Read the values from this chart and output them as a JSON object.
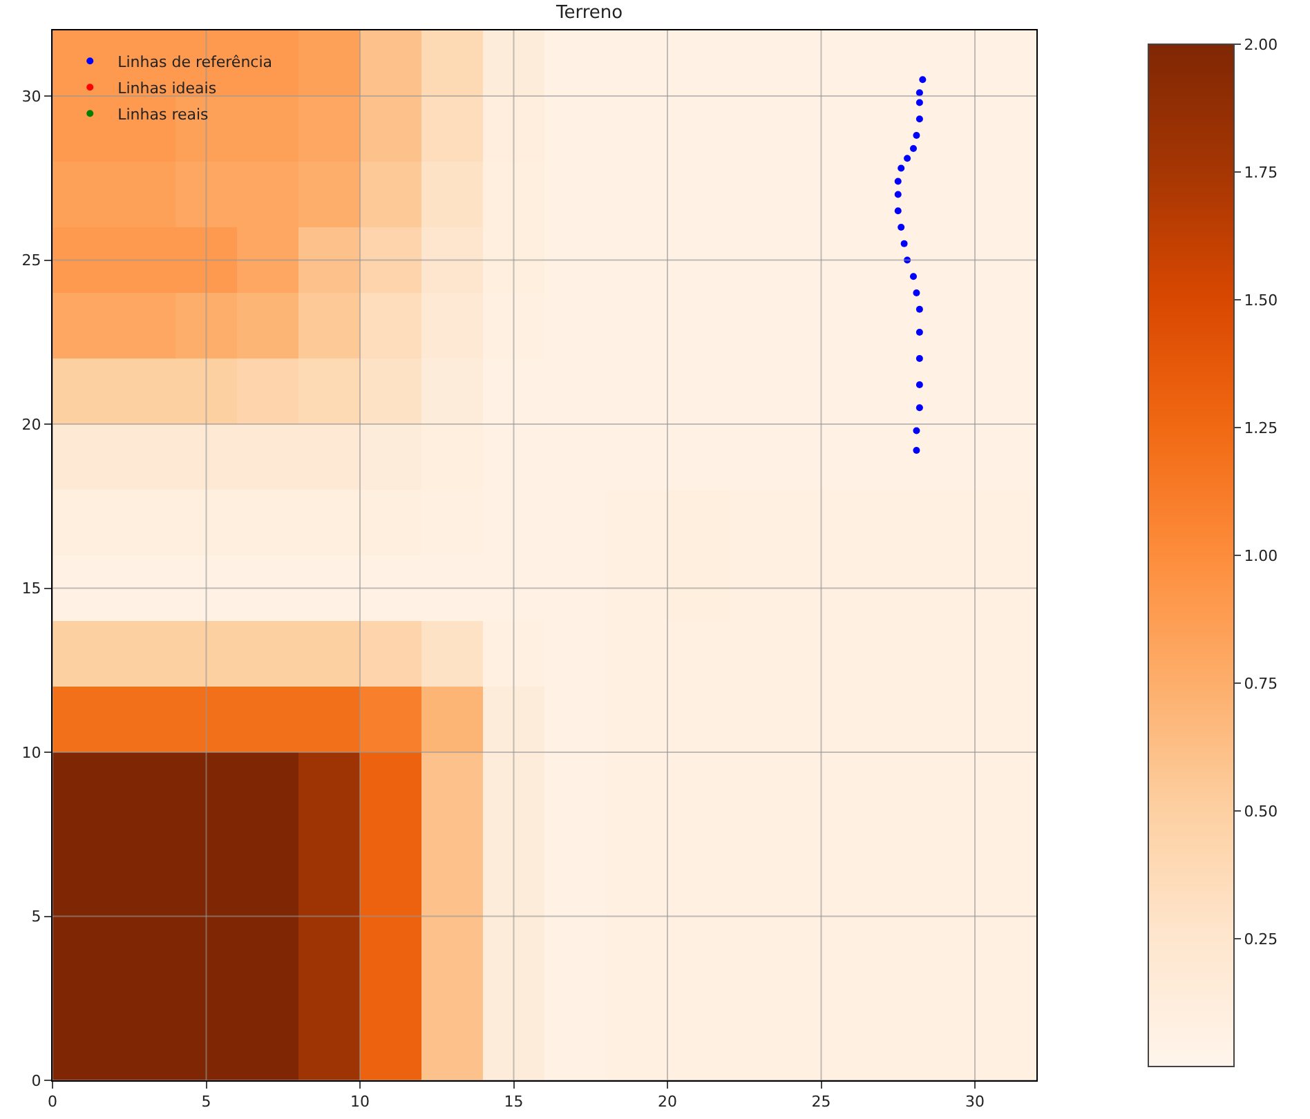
{
  "chart_data": {
    "type": "heatmap",
    "title": "Terreno",
    "xlim": [
      0,
      32
    ],
    "xticks": [
      0,
      5,
      10,
      15,
      20,
      25,
      30
    ],
    "ylim": [
      0,
      32
    ],
    "yticks": [
      0,
      5,
      10,
      15,
      20,
      25,
      30
    ],
    "clim": [
      0,
      2
    ],
    "cticks": [
      {
        "value": 0.25,
        "label": "0.25"
      },
      {
        "value": 0.5,
        "label": "0.50"
      },
      {
        "value": 0.75,
        "label": "0.75"
      },
      {
        "value": 1,
        "label": "1.00"
      },
      {
        "value": 1.25,
        "label": "1.25"
      },
      {
        "value": 1.5,
        "label": "1.50"
      },
      {
        "value": 1.75,
        "label": "1.75"
      },
      {
        "value": 2,
        "label": "2.00"
      }
    ],
    "cells": [
      [
        0.9,
        0.9,
        0.9,
        0.9,
        0.85,
        0.6,
        0.4,
        0.15,
        0.05,
        0.05,
        0.05,
        0.05,
        0.05,
        0.05,
        0.05,
        0.05
      ],
      [
        0.9,
        0.9,
        0.85,
        0.85,
        0.8,
        0.6,
        0.35,
        0.12,
        0.05,
        0.05,
        0.05,
        0.05,
        0.05,
        0.05,
        0.05,
        0.05
      ],
      [
        0.85,
        0.85,
        0.8,
        0.8,
        0.75,
        0.55,
        0.3,
        0.1,
        0.05,
        0.05,
        0.05,
        0.05,
        0.05,
        0.05,
        0.05,
        0.05
      ],
      [
        0.9,
        0.9,
        0.9,
        0.8,
        0.6,
        0.45,
        0.25,
        0.1,
        0.05,
        0.05,
        0.05,
        0.05,
        0.05,
        0.05,
        0.05,
        0.05
      ],
      [
        0.8,
        0.8,
        0.75,
        0.7,
        0.55,
        0.35,
        0.2,
        0.08,
        0.05,
        0.05,
        0.05,
        0.05,
        0.05,
        0.05,
        0.05,
        0.05
      ],
      [
        0.5,
        0.5,
        0.5,
        0.45,
        0.4,
        0.3,
        0.15,
        0.06,
        0.05,
        0.05,
        0.05,
        0.05,
        0.05,
        0.05,
        0.05,
        0.05
      ],
      [
        0.2,
        0.2,
        0.2,
        0.2,
        0.2,
        0.15,
        0.1,
        0.05,
        0.05,
        0.05,
        0.05,
        0.05,
        0.05,
        0.05,
        0.05,
        0.05
      ],
      [
        0.1,
        0.1,
        0.1,
        0.1,
        0.1,
        0.1,
        0.08,
        0.05,
        0.05,
        0.08,
        0.1,
        0.08,
        0.08,
        0.08,
        0.08,
        0.08
      ],
      [
        0.05,
        0.05,
        0.05,
        0.05,
        0.05,
        0.05,
        0.05,
        0.05,
        0.05,
        0.08,
        0.1,
        0.08,
        0.08,
        0.08,
        0.08,
        0.08
      ],
      [
        0.5,
        0.5,
        0.5,
        0.5,
        0.5,
        0.45,
        0.3,
        0.08,
        0.05,
        0.08,
        0.08,
        0.08,
        0.08,
        0.08,
        0.08,
        0.08
      ],
      [
        1.2,
        1.2,
        1.2,
        1.2,
        1.2,
        1.1,
        0.7,
        0.15,
        0.05,
        0.08,
        0.08,
        0.08,
        0.08,
        0.08,
        0.08,
        0.08
      ],
      [
        2,
        2,
        2,
        2,
        1.8,
        1.3,
        0.6,
        0.15,
        0.05,
        0.08,
        0.08,
        0.08,
        0.08,
        0.08,
        0.08,
        0.08
      ],
      [
        2,
        2,
        2,
        2,
        1.8,
        1.3,
        0.6,
        0.15,
        0.05,
        0.08,
        0.08,
        0.08,
        0.08,
        0.08,
        0.08,
        0.08
      ],
      [
        2,
        2,
        2,
        2,
        1.8,
        1.3,
        0.6,
        0.15,
        0.05,
        0.08,
        0.08,
        0.08,
        0.08,
        0.08,
        0.08,
        0.08
      ],
      [
        2,
        2,
        2,
        2,
        1.8,
        1.3,
        0.6,
        0.15,
        0.05,
        0.08,
        0.08,
        0.08,
        0.08,
        0.08,
        0.08,
        0.08
      ],
      [
        2,
        2,
        2,
        2,
        1.8,
        1.3,
        0.6,
        0.15,
        0.05,
        0.08,
        0.08,
        0.08,
        0.08,
        0.08,
        0.08,
        0.08
      ]
    ],
    "series": [
      {
        "type": "scatter",
        "name": "Linhas de referência",
        "color": "#0000ff",
        "marker": "circle",
        "x": [
          28.1,
          28.1,
          28.2,
          28.2,
          28.2,
          28.2,
          28.2,
          28.1,
          28.0,
          27.8,
          27.7,
          27.6,
          27.5,
          27.5,
          27.5,
          27.6,
          27.8,
          28.0,
          28.1,
          28.2,
          28.2,
          28.2,
          28.3
        ],
        "values": [
          19.2,
          19.8,
          20.5,
          21.2,
          22,
          22.8,
          23.5,
          24,
          24.5,
          25,
          25.5,
          26,
          26.5,
          27,
          27.4,
          27.8,
          28.1,
          28.4,
          28.8,
          29.3,
          29.8,
          30.1,
          30.5
        ]
      },
      {
        "type": "scatter",
        "name": "Linhas ideais",
        "color": "#ff0000",
        "marker": "circle"
      },
      {
        "type": "scatter",
        "name": "Linhas reais",
        "color": "#008000",
        "marker": "circle"
      }
    ],
    "grid": true,
    "legend": "top left"
  }
}
